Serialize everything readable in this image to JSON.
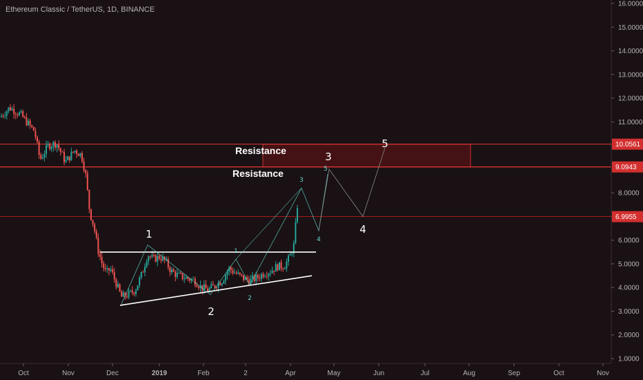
{
  "header": {
    "title": "Ethereum Classic / TetherUS, 1D, BINANCE"
  },
  "chart_data": {
    "type": "candlestick",
    "grid": false,
    "y_axis": {
      "side": "right",
      "ylim": [
        0.7,
        16.1
      ],
      "ticks": [
        "16.0000",
        "15.0000",
        "14.0000",
        "13.0000",
        "12.0000",
        "11.0000",
        "10.0000",
        "9.0000",
        "8.0000",
        "7.0000",
        "6.0000",
        "5.0000",
        "4.0000",
        "3.0000",
        "2.0000",
        "1.0000"
      ]
    },
    "x_axis": {
      "ticks": [
        "Oct",
        "Nov",
        "Dec",
        "2019",
        "Feb",
        "2",
        "Apr",
        "May",
        "Jun",
        "Jul",
        "Aug",
        "Sep",
        "Oct",
        "Nov"
      ]
    },
    "price_tags": [
      {
        "value": "10.0561",
        "color": "#d32f2f"
      },
      {
        "value": "9.0943",
        "color": "#d32f2f"
      },
      {
        "value": "6.9955",
        "color": "#d32f2f"
      }
    ],
    "annotations": {
      "resistance_labels": [
        "Resistance",
        "Resistance"
      ],
      "wave_big": [
        "1",
        "2",
        "3",
        "4",
        "5"
      ],
      "wave_small": [
        "1",
        "2",
        "3",
        "4",
        "5"
      ]
    },
    "colors": {
      "up": "#26a69a",
      "down": "#ef5350",
      "resistance_line": "#e53935",
      "trend_line": "#ffffff",
      "projection": "#5fd6c8",
      "projection_big": "#8a8a8a"
    }
  }
}
